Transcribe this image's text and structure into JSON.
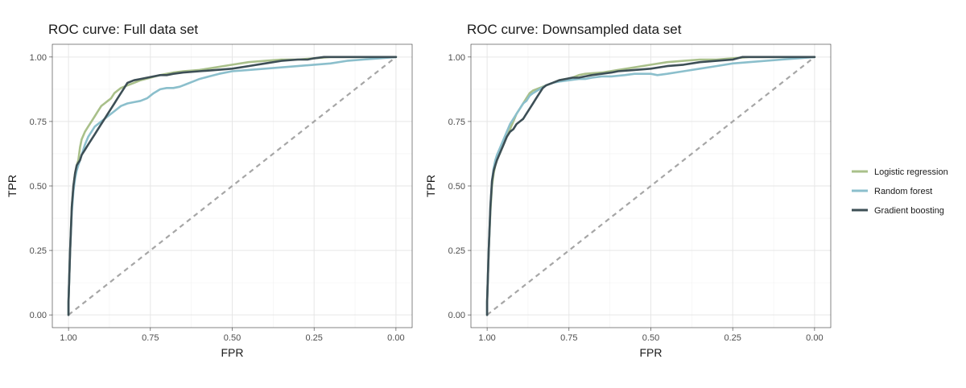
{
  "chart_data": [
    {
      "type": "line",
      "title": "ROC curve: Full data set",
      "xlabel": "FPR",
      "ylabel": "TPR",
      "x_reversed": true,
      "xlim": [
        1.0,
        0.0
      ],
      "ylim": [
        0.0,
        1.0
      ],
      "xticks": [
        "1.00",
        "0.75",
        "0.50",
        "0.25",
        "0.00"
      ],
      "yticks": [
        "0.00",
        "0.25",
        "0.50",
        "0.75",
        "1.00"
      ],
      "grid": true,
      "diagonal": {
        "style": "dashed",
        "color": "#a6a6a6"
      },
      "series": [
        {
          "name": "Logistic regression",
          "color": "#a9c08a",
          "points": [
            [
              1.0,
              0.0
            ],
            [
              1.0,
              0.05
            ],
            [
              0.995,
              0.25
            ],
            [
              0.99,
              0.42
            ],
            [
              0.985,
              0.5
            ],
            [
              0.98,
              0.55
            ],
            [
              0.975,
              0.58
            ],
            [
              0.97,
              0.6
            ],
            [
              0.965,
              0.65
            ],
            [
              0.96,
              0.68
            ],
            [
              0.95,
              0.71
            ],
            [
              0.94,
              0.73
            ],
            [
              0.93,
              0.75
            ],
            [
              0.92,
              0.77
            ],
            [
              0.91,
              0.79
            ],
            [
              0.9,
              0.81
            ],
            [
              0.89,
              0.82
            ],
            [
              0.88,
              0.83
            ],
            [
              0.87,
              0.84
            ],
            [
              0.86,
              0.86
            ],
            [
              0.85,
              0.87
            ],
            [
              0.84,
              0.88
            ],
            [
              0.82,
              0.89
            ],
            [
              0.8,
              0.9
            ],
            [
              0.78,
              0.91
            ],
            [
              0.75,
              0.92
            ],
            [
              0.72,
              0.93
            ],
            [
              0.7,
              0.935
            ],
            [
              0.68,
              0.94
            ],
            [
              0.65,
              0.945
            ],
            [
              0.6,
              0.95
            ],
            [
              0.55,
              0.96
            ],
            [
              0.5,
              0.97
            ],
            [
              0.45,
              0.98
            ],
            [
              0.4,
              0.985
            ],
            [
              0.35,
              0.99
            ],
            [
              0.3,
              0.99
            ],
            [
              0.25,
              0.995
            ],
            [
              0.2,
              1.0
            ],
            [
              0.1,
              1.0
            ],
            [
              0.0,
              1.0
            ]
          ]
        },
        {
          "name": "Random forest",
          "color": "#8bbfcc",
          "points": [
            [
              1.0,
              0.0
            ],
            [
              1.0,
              0.05
            ],
            [
              0.995,
              0.25
            ],
            [
              0.99,
              0.4
            ],
            [
              0.985,
              0.48
            ],
            [
              0.98,
              0.53
            ],
            [
              0.975,
              0.56
            ],
            [
              0.97,
              0.58
            ],
            [
              0.96,
              0.62
            ],
            [
              0.95,
              0.66
            ],
            [
              0.94,
              0.69
            ],
            [
              0.93,
              0.71
            ],
            [
              0.92,
              0.73
            ],
            [
              0.9,
              0.75
            ],
            [
              0.88,
              0.77
            ],
            [
              0.86,
              0.79
            ],
            [
              0.84,
              0.81
            ],
            [
              0.82,
              0.82
            ],
            [
              0.8,
              0.825
            ],
            [
              0.78,
              0.83
            ],
            [
              0.76,
              0.84
            ],
            [
              0.74,
              0.86
            ],
            [
              0.72,
              0.875
            ],
            [
              0.7,
              0.88
            ],
            [
              0.68,
              0.88
            ],
            [
              0.66,
              0.885
            ],
            [
              0.64,
              0.895
            ],
            [
              0.62,
              0.905
            ],
            [
              0.6,
              0.915
            ],
            [
              0.57,
              0.925
            ],
            [
              0.54,
              0.935
            ],
            [
              0.5,
              0.945
            ],
            [
              0.45,
              0.95
            ],
            [
              0.4,
              0.955
            ],
            [
              0.35,
              0.96
            ],
            [
              0.3,
              0.965
            ],
            [
              0.25,
              0.97
            ],
            [
              0.2,
              0.975
            ],
            [
              0.15,
              0.985
            ],
            [
              0.1,
              0.99
            ],
            [
              0.05,
              0.995
            ],
            [
              0.0,
              1.0
            ]
          ]
        },
        {
          "name": "Gradient boosting",
          "color": "#3d4f56",
          "points": [
            [
              1.0,
              0.0
            ],
            [
              1.0,
              0.05
            ],
            [
              0.995,
              0.25
            ],
            [
              0.99,
              0.42
            ],
            [
              0.985,
              0.5
            ],
            [
              0.98,
              0.55
            ],
            [
              0.975,
              0.58
            ],
            [
              0.97,
              0.59
            ],
            [
              0.965,
              0.6
            ],
            [
              0.96,
              0.62
            ],
            [
              0.95,
              0.64
            ],
            [
              0.94,
              0.66
            ],
            [
              0.93,
              0.68
            ],
            [
              0.92,
              0.7
            ],
            [
              0.91,
              0.72
            ],
            [
              0.9,
              0.74
            ],
            [
              0.89,
              0.76
            ],
            [
              0.88,
              0.78
            ],
            [
              0.87,
              0.8
            ],
            [
              0.86,
              0.82
            ],
            [
              0.85,
              0.84
            ],
            [
              0.84,
              0.86
            ],
            [
              0.83,
              0.88
            ],
            [
              0.82,
              0.9
            ],
            [
              0.8,
              0.91
            ],
            [
              0.78,
              0.915
            ],
            [
              0.76,
              0.92
            ],
            [
              0.74,
              0.925
            ],
            [
              0.72,
              0.93
            ],
            [
              0.7,
              0.93
            ],
            [
              0.68,
              0.935
            ],
            [
              0.65,
              0.94
            ],
            [
              0.6,
              0.945
            ],
            [
              0.55,
              0.95
            ],
            [
              0.5,
              0.955
            ],
            [
              0.45,
              0.965
            ],
            [
              0.4,
              0.975
            ],
            [
              0.35,
              0.985
            ],
            [
              0.3,
              0.99
            ],
            [
              0.27,
              0.99
            ],
            [
              0.25,
              0.995
            ],
            [
              0.22,
              1.0
            ],
            [
              0.1,
              1.0
            ],
            [
              0.0,
              1.0
            ]
          ]
        }
      ]
    },
    {
      "type": "line",
      "title": "ROC curve: Downsampled data set",
      "xlabel": "FPR",
      "ylabel": "TPR",
      "x_reversed": true,
      "xlim": [
        1.0,
        0.0
      ],
      "ylim": [
        0.0,
        1.0
      ],
      "xticks": [
        "1.00",
        "0.75",
        "0.50",
        "0.25",
        "0.00"
      ],
      "yticks": [
        "0.00",
        "0.25",
        "0.50",
        "0.75",
        "1.00"
      ],
      "grid": true,
      "diagonal": {
        "style": "dashed",
        "color": "#a6a6a6"
      },
      "series": [
        {
          "name": "Logistic regression",
          "color": "#a9c08a",
          "points": [
            [
              1.0,
              0.0
            ],
            [
              1.0,
              0.05
            ],
            [
              0.995,
              0.25
            ],
            [
              0.99,
              0.4
            ],
            [
              0.985,
              0.5
            ],
            [
              0.98,
              0.55
            ],
            [
              0.975,
              0.58
            ],
            [
              0.97,
              0.6
            ],
            [
              0.96,
              0.63
            ],
            [
              0.95,
              0.66
            ],
            [
              0.94,
              0.69
            ],
            [
              0.93,
              0.72
            ],
            [
              0.92,
              0.75
            ],
            [
              0.91,
              0.78
            ],
            [
              0.9,
              0.8
            ],
            [
              0.89,
              0.82
            ],
            [
              0.88,
              0.84
            ],
            [
              0.87,
              0.86
            ],
            [
              0.86,
              0.87
            ],
            [
              0.84,
              0.88
            ],
            [
              0.82,
              0.89
            ],
            [
              0.8,
              0.9
            ],
            [
              0.78,
              0.91
            ],
            [
              0.76,
              0.915
            ],
            [
              0.74,
              0.92
            ],
            [
              0.72,
              0.93
            ],
            [
              0.7,
              0.935
            ],
            [
              0.65,
              0.94
            ],
            [
              0.6,
              0.95
            ],
            [
              0.55,
              0.96
            ],
            [
              0.5,
              0.97
            ],
            [
              0.45,
              0.98
            ],
            [
              0.4,
              0.985
            ],
            [
              0.35,
              0.99
            ],
            [
              0.3,
              0.99
            ],
            [
              0.25,
              0.995
            ],
            [
              0.2,
              1.0
            ],
            [
              0.1,
              1.0
            ],
            [
              0.0,
              1.0
            ]
          ]
        },
        {
          "name": "Random forest",
          "color": "#8bbfcc",
          "points": [
            [
              1.0,
              0.0
            ],
            [
              1.0,
              0.05
            ],
            [
              0.995,
              0.25
            ],
            [
              0.99,
              0.42
            ],
            [
              0.985,
              0.52
            ],
            [
              0.98,
              0.57
            ],
            [
              0.975,
              0.6
            ],
            [
              0.97,
              0.62
            ],
            [
              0.96,
              0.65
            ],
            [
              0.95,
              0.68
            ],
            [
              0.94,
              0.71
            ],
            [
              0.93,
              0.74
            ],
            [
              0.92,
              0.76
            ],
            [
              0.91,
              0.78
            ],
            [
              0.9,
              0.8
            ],
            [
              0.89,
              0.82
            ],
            [
              0.88,
              0.83
            ],
            [
              0.87,
              0.85
            ],
            [
              0.86,
              0.86
            ],
            [
              0.84,
              0.875
            ],
            [
              0.82,
              0.89
            ],
            [
              0.8,
              0.9
            ],
            [
              0.78,
              0.905
            ],
            [
              0.75,
              0.91
            ],
            [
              0.72,
              0.915
            ],
            [
              0.7,
              0.915
            ],
            [
              0.68,
              0.92
            ],
            [
              0.65,
              0.925
            ],
            [
              0.62,
              0.925
            ],
            [
              0.58,
              0.93
            ],
            [
              0.55,
              0.935
            ],
            [
              0.5,
              0.935
            ],
            [
              0.48,
              0.93
            ],
            [
              0.45,
              0.935
            ],
            [
              0.4,
              0.945
            ],
            [
              0.35,
              0.955
            ],
            [
              0.3,
              0.965
            ],
            [
              0.25,
              0.975
            ],
            [
              0.2,
              0.98
            ],
            [
              0.1,
              0.99
            ],
            [
              0.05,
              0.995
            ],
            [
              0.0,
              1.0
            ]
          ]
        },
        {
          "name": "Gradient boosting",
          "color": "#3d4f56",
          "points": [
            [
              1.0,
              0.0
            ],
            [
              1.0,
              0.05
            ],
            [
              0.995,
              0.25
            ],
            [
              0.99,
              0.42
            ],
            [
              0.985,
              0.52
            ],
            [
              0.98,
              0.56
            ],
            [
              0.975,
              0.58
            ],
            [
              0.97,
              0.6
            ],
            [
              0.96,
              0.63
            ],
            [
              0.95,
              0.66
            ],
            [
              0.94,
              0.69
            ],
            [
              0.93,
              0.71
            ],
            [
              0.92,
              0.72
            ],
            [
              0.91,
              0.74
            ],
            [
              0.9,
              0.75
            ],
            [
              0.89,
              0.76
            ],
            [
              0.88,
              0.78
            ],
            [
              0.87,
              0.8
            ],
            [
              0.86,
              0.82
            ],
            [
              0.85,
              0.84
            ],
            [
              0.84,
              0.86
            ],
            [
              0.83,
              0.88
            ],
            [
              0.82,
              0.89
            ],
            [
              0.8,
              0.9
            ],
            [
              0.78,
              0.91
            ],
            [
              0.76,
              0.915
            ],
            [
              0.74,
              0.92
            ],
            [
              0.72,
              0.92
            ],
            [
              0.7,
              0.925
            ],
            [
              0.68,
              0.93
            ],
            [
              0.65,
              0.935
            ],
            [
              0.62,
              0.94
            ],
            [
              0.6,
              0.945
            ],
            [
              0.55,
              0.95
            ],
            [
              0.5,
              0.955
            ],
            [
              0.45,
              0.965
            ],
            [
              0.4,
              0.97
            ],
            [
              0.35,
              0.98
            ],
            [
              0.3,
              0.985
            ],
            [
              0.25,
              0.99
            ],
            [
              0.22,
              1.0
            ],
            [
              0.1,
              1.0
            ],
            [
              0.0,
              1.0
            ]
          ]
        }
      ]
    }
  ],
  "legend": {
    "position": "right",
    "items": [
      {
        "label": "Logistic regression",
        "color": "#a9c08a"
      },
      {
        "label": "Random forest",
        "color": "#8bbfcc"
      },
      {
        "label": "Gradient boosting",
        "color": "#3d4f56"
      }
    ]
  }
}
